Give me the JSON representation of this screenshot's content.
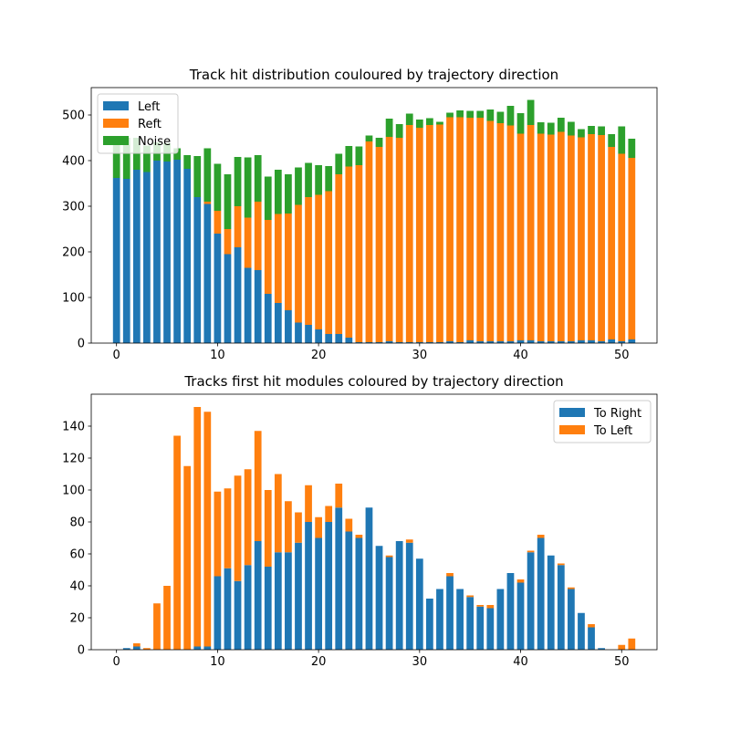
{
  "colors": {
    "blue": "#1f77b4",
    "orange": "#ff7f0e",
    "green": "#2ca02c"
  },
  "chart_data": [
    {
      "type": "bar",
      "stacked": true,
      "title": "Track hit distribution couloured by trajectory direction",
      "xlabel": "",
      "ylabel": "",
      "xlim": [
        -2.5,
        53.5
      ],
      "ylim": [
        0,
        560
      ],
      "xticks": [
        0,
        10,
        20,
        30,
        40,
        50
      ],
      "yticks": [
        0,
        100,
        200,
        300,
        400,
        500
      ],
      "legend_position": "upper-left",
      "x": [
        0,
        1,
        2,
        3,
        4,
        5,
        6,
        7,
        8,
        9,
        10,
        11,
        12,
        13,
        14,
        15,
        16,
        17,
        18,
        19,
        20,
        21,
        22,
        23,
        24,
        25,
        26,
        27,
        28,
        29,
        30,
        31,
        32,
        33,
        34,
        35,
        36,
        37,
        38,
        39,
        40,
        41,
        42,
        43,
        44,
        45,
        46,
        47,
        48,
        49,
        50,
        51
      ],
      "series": [
        {
          "name": "Left",
          "color": "#1f77b4",
          "values": [
            362,
            360,
            380,
            375,
            400,
            398,
            402,
            382,
            320,
            305,
            240,
            195,
            210,
            165,
            160,
            108,
            88,
            72,
            45,
            40,
            30,
            20,
            20,
            12,
            2,
            2,
            2,
            4,
            2,
            2,
            2,
            2,
            2,
            4,
            2,
            6,
            4,
            4,
            4,
            4,
            6,
            6,
            4,
            4,
            4,
            4,
            6,
            6,
            4,
            8,
            4,
            8
          ]
        },
        {
          "name": "Reft",
          "color": "#ff7f0e",
          "values": [
            0,
            0,
            0,
            0,
            0,
            0,
            0,
            0,
            0,
            5,
            50,
            55,
            90,
            110,
            150,
            162,
            195,
            212,
            258,
            280,
            295,
            313,
            350,
            375,
            388,
            440,
            428,
            448,
            448,
            476,
            470,
            476,
            477,
            491,
            493,
            488,
            490,
            483,
            478,
            473,
            453,
            472,
            455,
            453,
            459,
            451,
            445,
            452,
            452,
            422,
            411,
            398
          ]
        },
        {
          "name": "Noise",
          "color": "#2ca02c",
          "values": [
            90,
            90,
            70,
            58,
            40,
            40,
            25,
            30,
            90,
            117,
            103,
            120,
            108,
            132,
            102,
            95,
            97,
            86,
            82,
            75,
            65,
            55,
            45,
            45,
            41,
            13,
            20,
            40,
            30,
            25,
            18,
            15,
            6,
            10,
            15,
            15,
            15,
            25,
            25,
            43,
            45,
            55,
            25,
            26,
            31,
            30,
            18,
            18,
            19,
            28,
            60,
            42
          ]
        }
      ]
    },
    {
      "type": "bar",
      "stacked": true,
      "title": "Tracks first hit modules coloured by trajectory direction",
      "xlabel": "",
      "ylabel": "",
      "xlim": [
        -2.5,
        53.5
      ],
      "ylim": [
        0,
        160
      ],
      "xticks": [
        0,
        10,
        20,
        30,
        40,
        50
      ],
      "yticks": [
        0,
        20,
        40,
        60,
        80,
        100,
        120,
        140
      ],
      "legend_position": "upper-right",
      "x": [
        0,
        1,
        2,
        3,
        4,
        5,
        6,
        7,
        8,
        9,
        10,
        11,
        12,
        13,
        14,
        15,
        16,
        17,
        18,
        19,
        20,
        21,
        22,
        23,
        24,
        25,
        26,
        27,
        28,
        29,
        30,
        31,
        32,
        33,
        34,
        35,
        36,
        37,
        38,
        39,
        40,
        41,
        42,
        43,
        44,
        45,
        46,
        47,
        48,
        49,
        50,
        51
      ],
      "series": [
        {
          "name": "To Right",
          "color": "#1f77b4",
          "values": [
            0,
            1,
            2,
            0,
            0,
            0,
            0,
            0,
            2,
            2,
            46,
            51,
            43,
            53,
            68,
            52,
            61,
            61,
            67,
            80,
            70,
            80,
            89,
            74,
            70,
            89,
            65,
            58,
            68,
            67,
            57,
            32,
            38,
            46,
            38,
            33,
            27,
            26,
            38,
            48,
            42,
            61,
            70,
            59,
            53,
            38,
            23,
            14,
            1,
            0,
            0,
            0
          ]
        },
        {
          "name": "To Left",
          "color": "#ff7f0e",
          "values": [
            0,
            0,
            2,
            1,
            29,
            40,
            134,
            115,
            150,
            147,
            53,
            50,
            66,
            60,
            69,
            48,
            49,
            32,
            19,
            23,
            13,
            10,
            15,
            8,
            2,
            0,
            0,
            1,
            0,
            2,
            0,
            0,
            0,
            2,
            0,
            1,
            1,
            2,
            0,
            0,
            2,
            1,
            2,
            0,
            1,
            1,
            0,
            2,
            0,
            0,
            3,
            7
          ]
        }
      ]
    }
  ]
}
